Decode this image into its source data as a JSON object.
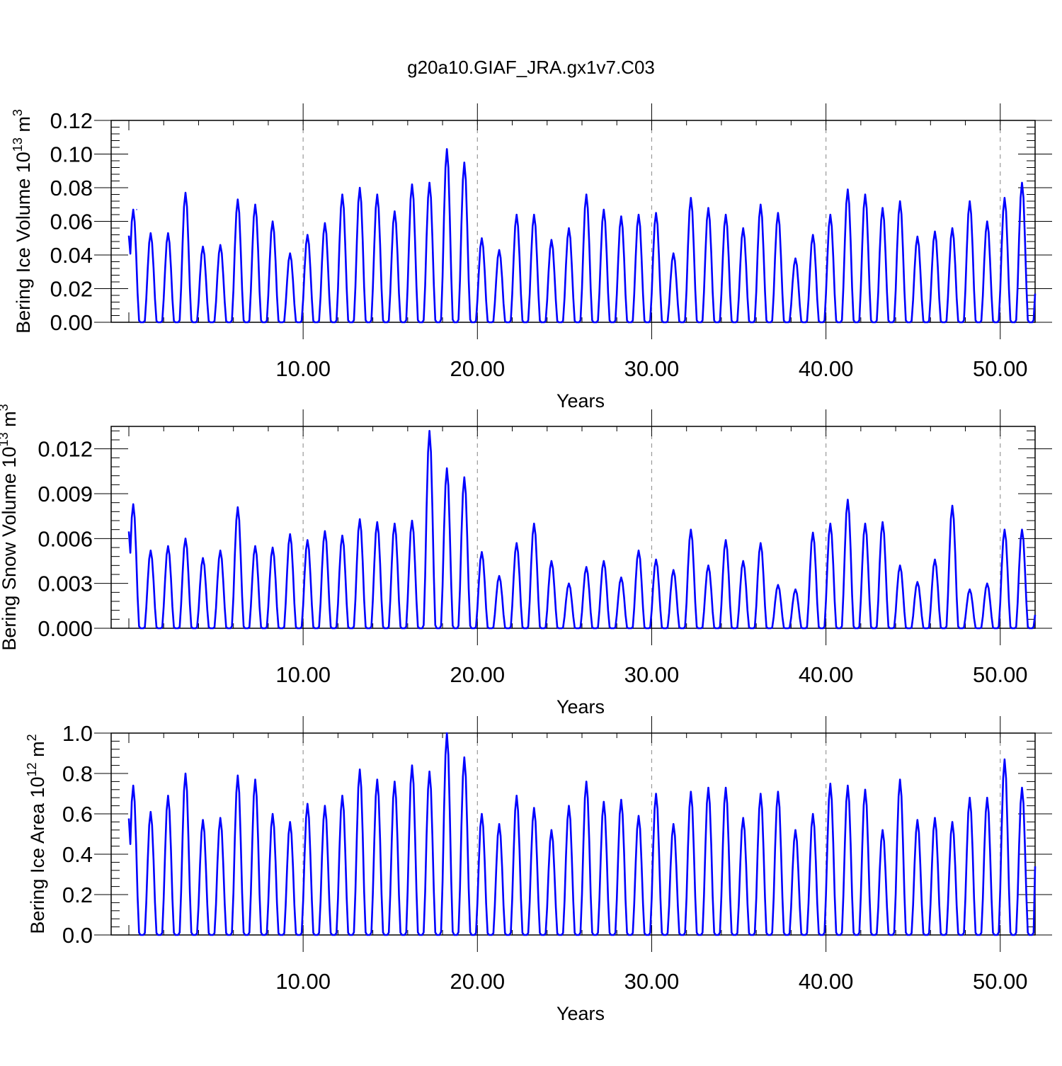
{
  "figure": {
    "title": "g20a10.GIAF_JRA.gx1v7.C03"
  },
  "chart_data": [
    {
      "type": "line",
      "xlabel": "Years",
      "ylabel": "Bering Ice Volume 10",
      "ylabel_sup": "13",
      "ylabel_unit": "m",
      "ylabel_unit_sup": "3",
      "xlim": [
        0,
        52
      ],
      "ylim": [
        0,
        0.12
      ],
      "xticks": [
        10,
        20,
        30,
        40,
        50
      ],
      "xtick_labels": [
        "10.00",
        "20.00",
        "30.00",
        "40.00",
        "50.00"
      ],
      "yticks": [
        0,
        0.02,
        0.04,
        0.06,
        0.08,
        0.1,
        0.12
      ],
      "ytick_labels": [
        "0.00",
        "0.02",
        "0.04",
        "0.06",
        "0.08",
        "0.10",
        "0.12"
      ],
      "grid": "dashed vertical at major x ticks",
      "line_color": "#0000ff",
      "end_value": 0.017,
      "series": [
        {
          "x": [
            0.25,
            0.45,
            1.25,
            3.25,
            4.25,
            5.25,
            6.25,
            7.25,
            8.25,
            9.25,
            10.25,
            11.25,
            12.25,
            13.25,
            14.25,
            15.25,
            16.25,
            17.25,
            18.25,
            19.25,
            20.25,
            21.25,
            22.25,
            23.25,
            24.25,
            25.25,
            26.25,
            27.25,
            28.25,
            29.25,
            30.25,
            31.25,
            32.25,
            33.25,
            34.25,
            35.25,
            36.25,
            37.25,
            38.25,
            39.25,
            40.25,
            41.25,
            42.25,
            43.25,
            44.25,
            45.25,
            46.25,
            47.25,
            48.25,
            49.25,
            50.25,
            51.25
          ],
          "values": [
            0.066,
            0.067,
            0.053,
            0.077,
            0.045,
            0.046,
            0.073,
            0.07,
            0.06,
            0.041,
            0.052,
            0.059,
            0.076,
            0.08,
            0.076,
            0.066,
            0.082,
            0.083,
            0.103,
            0.095,
            0.05,
            0.043,
            0.064,
            0.064,
            0.049,
            0.056,
            0.076,
            0.067,
            0.063,
            0.064,
            0.065,
            0.041,
            0.074,
            0.068,
            0.064,
            0.056,
            0.07,
            0.065,
            0.038,
            0.052,
            0.064,
            0.079,
            0.076,
            0.068,
            0.072,
            0.051,
            0.054,
            0.056,
            0.072,
            0.06,
            0.074,
            0.083
          ]
        }
      ]
    },
    {
      "type": "line",
      "xlabel": "Years",
      "ylabel": "Bering Snow Volume 10",
      "ylabel_sup": "13",
      "ylabel_unit": "m",
      "ylabel_unit_sup": "3",
      "xlim": [
        0,
        52
      ],
      "ylim": [
        0,
        0.0135
      ],
      "xticks": [
        10,
        20,
        30,
        40,
        50
      ],
      "xtick_labels": [
        "10.00",
        "20.00",
        "30.00",
        "40.00",
        "50.00"
      ],
      "yticks": [
        0,
        0.003,
        0.006,
        0.009,
        0.012
      ],
      "ytick_labels": [
        "0.000",
        "0.003",
        "0.006",
        "0.009",
        "0.012"
      ],
      "grid": "dashed vertical at major x ticks",
      "line_color": "#0000ff",
      "end_value": 0.0009,
      "series": [
        {
          "x": [
            0.25,
            1.25,
            2.25,
            3.25,
            4.25,
            5.25,
            6.25,
            7.25,
            8.25,
            9.25,
            10.25,
            11.25,
            12.25,
            13.25,
            14.25,
            15.25,
            16.25,
            17.25,
            18.25,
            19.25,
            20.25,
            21.25,
            22.25,
            23.25,
            24.25,
            25.25,
            26.25,
            27.25,
            28.25,
            29.25,
            30.25,
            31.25,
            32.25,
            33.25,
            34.25,
            35.25,
            36.25,
            37.25,
            38.25,
            39.25,
            40.25,
            41.25,
            42.25,
            43.25,
            44.25,
            45.25,
            46.25,
            47.25,
            48.25,
            49.25,
            50.25,
            51.25
          ],
          "values": [
            0.0083,
            0.0052,
            0.0055,
            0.006,
            0.0047,
            0.0052,
            0.0081,
            0.0055,
            0.0054,
            0.0063,
            0.0059,
            0.0065,
            0.0062,
            0.0073,
            0.0071,
            0.007,
            0.0072,
            0.0132,
            0.0107,
            0.0101,
            0.0051,
            0.0035,
            0.0057,
            0.007,
            0.0045,
            0.003,
            0.0041,
            0.0045,
            0.0034,
            0.0052,
            0.0046,
            0.0039,
            0.0066,
            0.0042,
            0.0059,
            0.0045,
            0.0057,
            0.0029,
            0.0026,
            0.0064,
            0.007,
            0.0086,
            0.007,
            0.0071,
            0.0042,
            0.0031,
            0.0046,
            0.0082,
            0.0026,
            0.003,
            0.0066,
            0.0066
          ]
        }
      ]
    },
    {
      "type": "line",
      "xlabel": "Years",
      "ylabel": "Bering Ice Area 10",
      "ylabel_sup": "12",
      "ylabel_unit": "m",
      "ylabel_unit_sup": "2",
      "xlim": [
        0,
        52
      ],
      "ylim": [
        0,
        1.0
      ],
      "xticks": [
        10,
        20,
        30,
        40,
        50
      ],
      "xtick_labels": [
        "10.00",
        "20.00",
        "30.00",
        "40.00",
        "50.00"
      ],
      "yticks": [
        0,
        0.2,
        0.4,
        0.6,
        0.8,
        1.0
      ],
      "ytick_labels": [
        "0.0",
        "0.2",
        "0.4",
        "0.6",
        "0.8",
        "1.0"
      ],
      "grid": "dashed vertical at major x ticks",
      "line_color": "#0000ff",
      "end_value": 0.34,
      "series": [
        {
          "x": [
            0.25,
            1.25,
            2.25,
            3.25,
            4.25,
            5.25,
            6.25,
            7.25,
            8.25,
            9.25,
            10.25,
            11.25,
            12.25,
            13.25,
            14.25,
            15.25,
            16.25,
            17.25,
            18.25,
            19.25,
            20.25,
            21.25,
            22.25,
            23.25,
            24.25,
            25.25,
            26.25,
            27.25,
            28.25,
            29.25,
            30.25,
            31.25,
            32.25,
            33.25,
            34.25,
            35.25,
            36.25,
            37.25,
            38.25,
            39.25,
            40.25,
            41.25,
            42.25,
            43.25,
            44.25,
            45.25,
            46.25,
            47.25,
            48.25,
            49.25,
            50.25,
            51.25
          ],
          "values": [
            0.74,
            0.61,
            0.69,
            0.8,
            0.57,
            0.58,
            0.79,
            0.77,
            0.6,
            0.56,
            0.65,
            0.64,
            0.69,
            0.82,
            0.77,
            0.76,
            0.84,
            0.81,
            1.0,
            0.88,
            0.6,
            0.55,
            0.69,
            0.63,
            0.52,
            0.64,
            0.76,
            0.66,
            0.67,
            0.59,
            0.7,
            0.55,
            0.71,
            0.73,
            0.73,
            0.58,
            0.7,
            0.71,
            0.52,
            0.6,
            0.75,
            0.74,
            0.72,
            0.52,
            0.77,
            0.57,
            0.58,
            0.56,
            0.68,
            0.68,
            0.87,
            0.73
          ]
        }
      ]
    }
  ]
}
